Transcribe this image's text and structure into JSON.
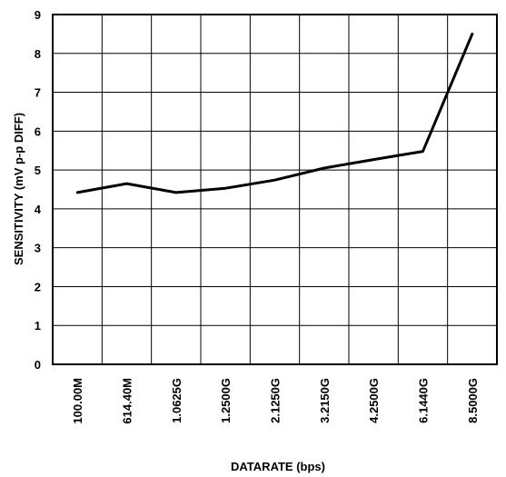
{
  "chart_data": {
    "type": "line",
    "title": "",
    "xlabel": "DATARATE (bps)",
    "ylabel": "SENSITIVITY (mV p-p DIFF)",
    "categories": [
      "100.00M",
      "614.40M",
      "1.0625G",
      "1.2500G",
      "2.1250G",
      "3.2150G",
      "4.2500G",
      "6.1440G",
      "8.5000G"
    ],
    "series": [
      {
        "values": [
          4.42,
          4.65,
          4.42,
          4.53,
          4.74,
          5.05,
          5.27,
          5.48,
          8.5
        ]
      }
    ],
    "ylim": [
      0,
      9
    ],
    "yticks": [
      "0",
      "1",
      "2",
      "3",
      "4",
      "5",
      "6",
      "7",
      "8",
      "9"
    ],
    "grid": true,
    "line_color": "#000000"
  }
}
